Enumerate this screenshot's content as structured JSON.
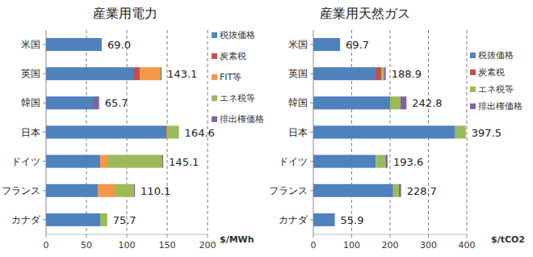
{
  "chart_data": [
    {
      "type": "bar",
      "title": "産業用電力",
      "orientation": "horizontal",
      "stacked": true,
      "grid": true,
      "legend": "right",
      "categories": [
        "米国",
        "英国",
        "韓国",
        "日本",
        "ドイツ",
        "フランス",
        "カナダ"
      ],
      "series": [
        {
          "name": "税抜価格",
          "color": "#4F81BD",
          "values": [
            69.0,
            108,
            58,
            148,
            67,
            64,
            67
          ]
        },
        {
          "name": "炭素税",
          "color": "#C0504D",
          "values": [
            0,
            8,
            0,
            1.6,
            0,
            0,
            0
          ]
        },
        {
          "name": "FIT等",
          "color": "#F79646",
          "values": [
            0,
            24,
            0,
            0,
            9,
            21,
            0
          ]
        },
        {
          "name": "エネ税等",
          "color": "#9BBB59",
          "values": [
            0,
            2,
            0,
            15,
            68,
            24,
            8.7
          ]
        },
        {
          "name": "排出権価格",
          "color": "#8064A2",
          "values": [
            0,
            1.1,
            7.7,
            0,
            1.1,
            1.1,
            0
          ]
        }
      ],
      "totals": [
        69.0,
        143.1,
        65.7,
        164.6,
        145.1,
        110.1,
        75.7
      ],
      "total_labels": [
        "69.0",
        "143.1",
        "65.7",
        "164.6",
        "145.1",
        "110.1",
        "75.7"
      ],
      "x_label": "$/MWh",
      "xlim": [
        0,
        200
      ],
      "xticks": [
        0,
        50,
        100,
        150,
        200
      ]
    },
    {
      "type": "bar",
      "title": "産業用天然ガス",
      "orientation": "horizontal",
      "stacked": true,
      "grid": true,
      "legend": "right",
      "categories": [
        "米国",
        "英国",
        "韓国",
        "日本",
        "ドイツ",
        "フランス",
        "カナダ"
      ],
      "series": [
        {
          "name": "税抜価格",
          "color": "#4F81BD",
          "values": [
            69.7,
            162,
            200,
            370,
            163,
            208,
            55.9
          ]
        },
        {
          "name": "炭素税",
          "color": "#C0504D",
          "values": [
            0,
            15,
            0,
            0,
            0,
            0,
            0
          ]
        },
        {
          "name": "エネ税等",
          "color": "#9BBB59",
          "values": [
            0,
            7,
            27,
            27.5,
            25,
            15,
            0
          ]
        },
        {
          "name": "排出権価格",
          "color": "#8064A2",
          "values": [
            0,
            4.9,
            15.8,
            0,
            5.6,
            5.7,
            0
          ]
        }
      ],
      "totals": [
        69.7,
        188.9,
        242.8,
        397.5,
        193.6,
        228.7,
        55.9
      ],
      "total_labels": [
        "69.7",
        "188.9",
        "242.8",
        "397.5",
        "193.6",
        "228.7",
        "55.9"
      ],
      "x_label": "$/tCO2",
      "xlim": [
        0,
        400
      ],
      "xticks": [
        0,
        100,
        200,
        300,
        400
      ]
    }
  ]
}
